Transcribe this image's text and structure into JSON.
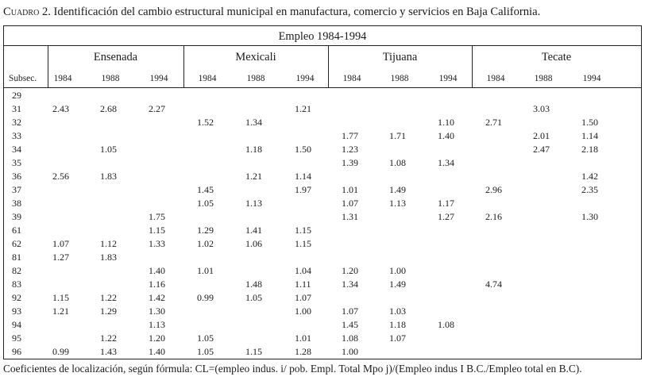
{
  "title": {
    "prefix": "Cuadro 2.",
    "text": "Identificación del cambio estructural municipal en manufactura, comercio y servicios en Baja California."
  },
  "table": {
    "subtitle": "Empleo 1984-1994",
    "groups": [
      "Ensenada",
      "Mexicali",
      "Tijuana",
      "Tecate"
    ],
    "years": [
      "1984",
      "1988",
      "1994"
    ],
    "subsec_header": "Subsec.",
    "rows": [
      {
        "sub": "29",
        "vals": [
          "",
          "",
          "",
          "",
          "",
          "",
          "",
          "",
          "",
          "",
          "",
          ""
        ]
      },
      {
        "sub": "31",
        "vals": [
          "2.43",
          "2.68",
          "2.27",
          "",
          "",
          "1.21",
          "",
          "",
          "",
          "",
          "3.03",
          ""
        ]
      },
      {
        "sub": "32",
        "vals": [
          "",
          "",
          "",
          "1.52",
          "1.34",
          "",
          "",
          "",
          "1.10",
          "2.71",
          "",
          "1.50"
        ]
      },
      {
        "sub": "33",
        "vals": [
          "",
          "",
          "",
          "",
          "",
          "",
          "1.77",
          "1.71",
          "1.40",
          "",
          "2.01",
          "1.14"
        ]
      },
      {
        "sub": "34",
        "vals": [
          "",
          "1.05",
          "",
          "",
          "1.18",
          "1.50",
          "1.23",
          "",
          "",
          "",
          "2.47",
          "2.18"
        ]
      },
      {
        "sub": "35",
        "vals": [
          "",
          "",
          "",
          "",
          "",
          "",
          "1.39",
          "1.08",
          "1.34",
          "",
          "",
          ""
        ]
      },
      {
        "sub": "36",
        "vals": [
          "2.56",
          "1.83",
          "",
          "",
          "1.21",
          "1.14",
          "",
          "",
          "",
          "",
          "",
          "1.42"
        ]
      },
      {
        "sub": "37",
        "vals": [
          "",
          "",
          "",
          "1.45",
          "",
          "1.97",
          "1.01",
          "1.49",
          "",
          "2.96",
          "",
          "2.35"
        ]
      },
      {
        "sub": "38",
        "vals": [
          "",
          "",
          "",
          "1.05",
          "1.13",
          "",
          "1.07",
          "1.13",
          "1.17",
          "",
          "",
          ""
        ]
      },
      {
        "sub": "39",
        "vals": [
          "",
          "",
          "1.75",
          "",
          "",
          "",
          "1.31",
          "",
          "1.27",
          "2.16",
          "",
          "1.30"
        ]
      },
      {
        "sub": "61",
        "vals": [
          "",
          "",
          "1.15",
          "1.29",
          "1.41",
          "1.15",
          "",
          "",
          "",
          "",
          "",
          ""
        ]
      },
      {
        "sub": "62",
        "vals": [
          "1.07",
          "1.12",
          "1.33",
          "1.02",
          "1.06",
          "1.15",
          "",
          "",
          "",
          "",
          "",
          ""
        ]
      },
      {
        "sub": "81",
        "vals": [
          "1.27",
          "1.83",
          "",
          "",
          "",
          "",
          "",
          "",
          "",
          "",
          "",
          ""
        ]
      },
      {
        "sub": "82",
        "vals": [
          "",
          "",
          "1.40",
          "1.01",
          "",
          "1.04",
          "1.20",
          "1.00",
          "",
          "",
          "",
          ""
        ]
      },
      {
        "sub": "83",
        "vals": [
          "",
          "",
          "1.16",
          "",
          "1.48",
          "1.11",
          "1.34",
          "1.49",
          "",
          "4.74",
          "",
          ""
        ]
      },
      {
        "sub": "92",
        "vals": [
          "1.15",
          "1.22",
          "1.42",
          "0.99",
          "1.05",
          "1.07",
          "",
          "",
          "",
          "",
          "",
          ""
        ]
      },
      {
        "sub": "93",
        "vals": [
          "1.21",
          "1.29",
          "1.30",
          "",
          "",
          "1.00",
          "1.07",
          "1.03",
          "",
          "",
          "",
          ""
        ]
      },
      {
        "sub": "94",
        "vals": [
          "",
          "",
          "1.13",
          "",
          "",
          "",
          "1.45",
          "1.18",
          "1.08",
          "",
          "",
          ""
        ]
      },
      {
        "sub": "95",
        "vals": [
          "",
          "1.22",
          "1.20",
          "1.05",
          "",
          "1.01",
          "1.08",
          "1.07",
          "",
          "",
          "",
          ""
        ]
      },
      {
        "sub": "96",
        "vals": [
          "0.99",
          "1.43",
          "1.40",
          "1.05",
          "1.15",
          "1.28",
          "1.00",
          "",
          "",
          "",
          "",
          ""
        ]
      }
    ]
  },
  "footnote": "Coeficientes de localización, según fórmula: CL=(empleo indus. i/ pob. Empl. Total Mpo j)/(Empleo indus I B.C./Empleo total en B.C)."
}
